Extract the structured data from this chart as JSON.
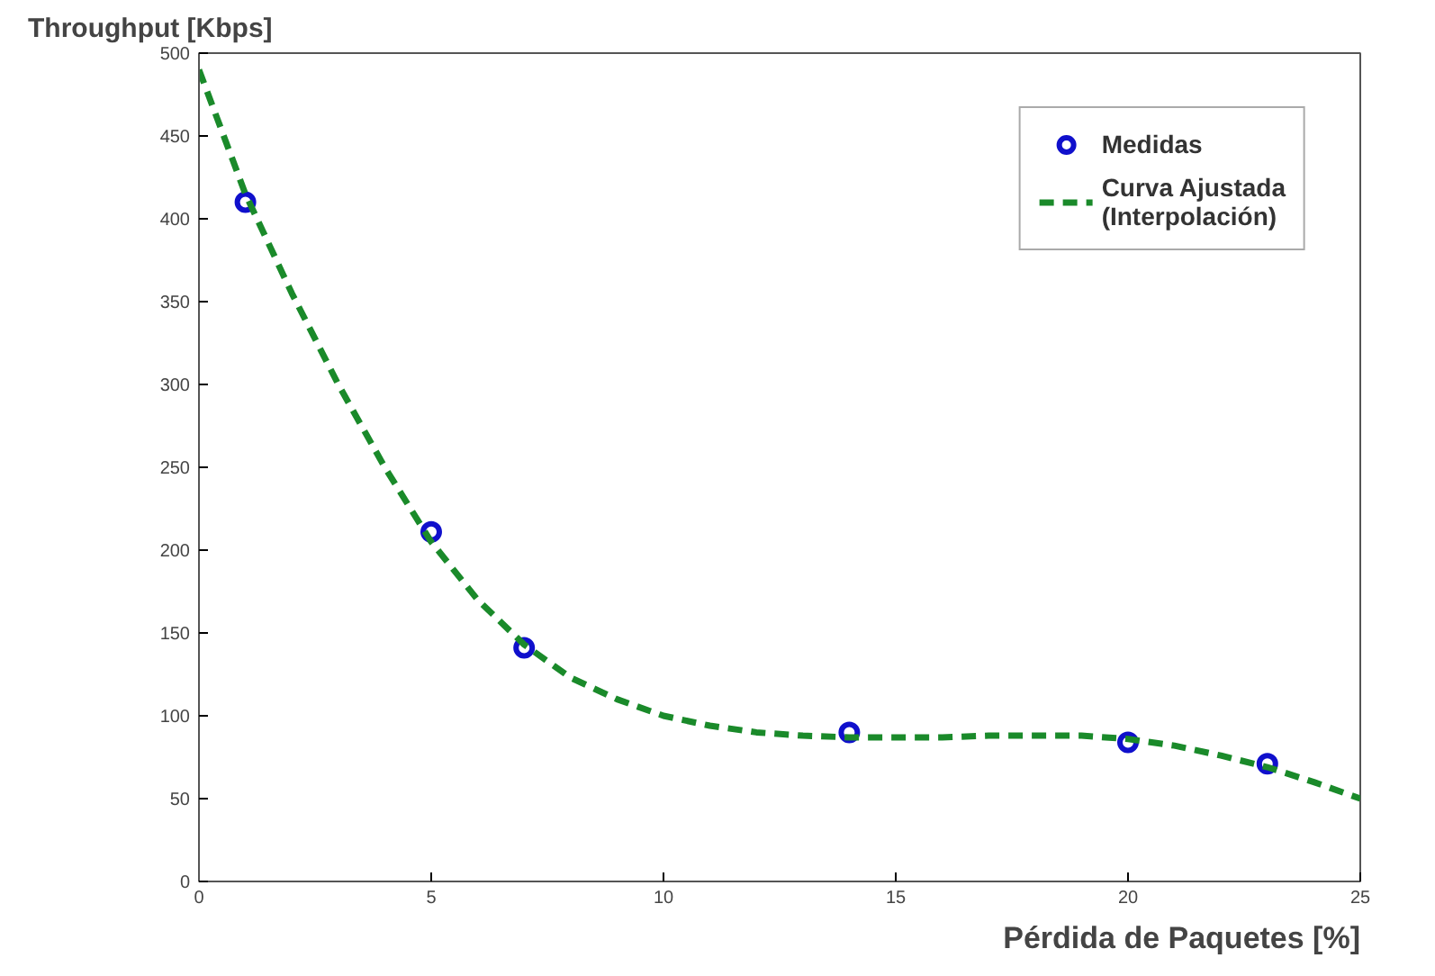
{
  "chart_data": {
    "type": "scatter",
    "xlabel": "Pérdida de Paquetes [%]",
    "ylabel": "Throughput [Kbps]",
    "xlim": [
      0,
      25
    ],
    "ylim": [
      0,
      500
    ],
    "xticks": [
      0,
      5,
      10,
      15,
      20,
      25
    ],
    "yticks": [
      0,
      50,
      100,
      150,
      200,
      250,
      300,
      350,
      400,
      450,
      500
    ],
    "grid": false,
    "legend": "top right",
    "series": [
      {
        "name": "Medidas",
        "color": "#1010cc",
        "marker": "circle",
        "x": [
          1,
          5,
          7,
          14,
          20,
          23
        ],
        "values": [
          410,
          211,
          141,
          90,
          84,
          71
        ]
      },
      {
        "name": "Curva Ajustada\n(Interpolación)",
        "color": "#1a8a2a",
        "type": "line",
        "line_style": "dashed",
        "x": [
          0,
          1,
          2,
          3,
          4,
          5,
          6,
          7,
          8,
          9,
          10,
          11,
          12,
          13,
          14,
          15,
          16,
          17,
          18,
          19,
          20,
          21,
          22,
          23,
          24,
          25
        ],
        "values": [
          490,
          415,
          355,
          300,
          250,
          205,
          170,
          143,
          123,
          110,
          100,
          94,
          90,
          88,
          87,
          87,
          87,
          88,
          88,
          88,
          86,
          82,
          76,
          69,
          60,
          50
        ]
      }
    ]
  }
}
